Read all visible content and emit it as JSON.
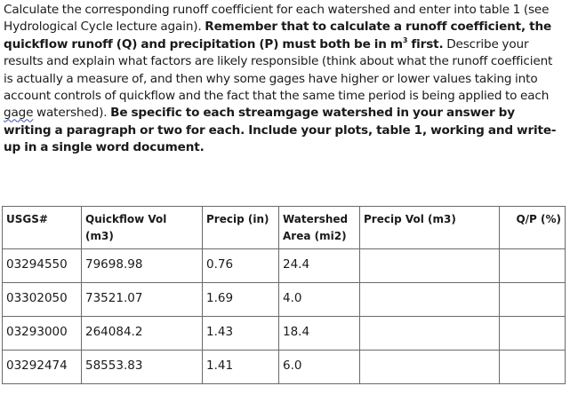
{
  "instructions": {
    "p1": "Calculate the corresponding runoff coefficient for each watershed and enter into table 1 (see Hydrological Cycle lecture again). ",
    "b1": "Remember that to calculate a runoff coefficient, the quickflow runoff (Q) and precipitation (P) must both be in m",
    "sup": "3",
    "b1b": " first.",
    "p2": " Describe your results and explain what factors are likely responsible (think about what the runoff coefficient is actually a measure of, and then why some gages have higher or lower values taking into account controls of quickflow and the fact that the same time period is being applied to each ",
    "squiggle": "gage",
    "p3": " watershed). ",
    "b2": "Be specific to each streamgage watershed in your answer by writing a paragraph or two for each. Include your plots, table 1, working and write-up in a single word document."
  },
  "table": {
    "headers": [
      "USGS#",
      "Quickflow Vol (m3)",
      "Precip (in)",
      "Watershed Area (mi2)",
      "Precip Vol (m3)",
      "Q/P (%)"
    ],
    "rows": [
      [
        "03294550",
        "79698.98",
        "0.76",
        "24.4",
        "",
        ""
      ],
      [
        "03302050",
        "73521.07",
        "1.69",
        "4.0",
        "",
        ""
      ],
      [
        "03293000",
        "264084.2",
        "1.43",
        "18.4",
        "",
        ""
      ],
      [
        "03292474",
        "58553.83",
        "1.41",
        "6.0",
        "",
        ""
      ]
    ]
  }
}
